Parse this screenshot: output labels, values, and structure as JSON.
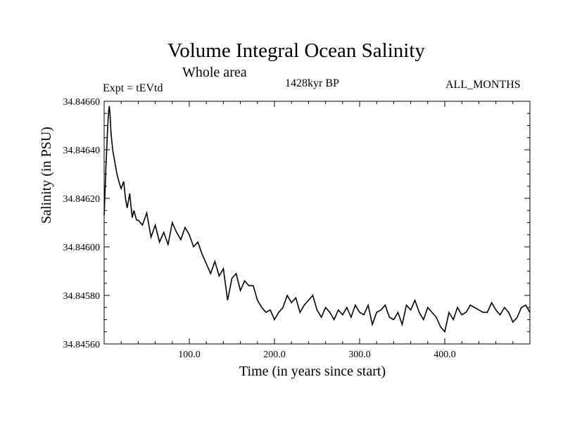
{
  "chart_data": {
    "type": "line",
    "title": "Volume Integral Ocean Salinity",
    "subtitle": "Whole area",
    "annotations": {
      "experiment": "Expt = tEVtd",
      "period": "1428kyr BP",
      "months": "ALL_MONTHS"
    },
    "xlabel": "Time (in years since start)",
    "ylabel": "Salinity (in PSU)",
    "xlim": [
      0,
      500
    ],
    "ylim": [
      34.8456,
      34.8466
    ],
    "xticks": [
      100,
      200,
      300,
      400
    ],
    "xtick_labels": [
      "100.0",
      "200.0",
      "300.0",
      "400.0"
    ],
    "yticks": [
      34.8456,
      34.8458,
      34.846,
      34.8462,
      34.8464,
      34.8466
    ],
    "ytick_labels": [
      "34.84560",
      "34.84580",
      "34.84600",
      "34.84620",
      "34.84640",
      "34.84660"
    ],
    "grid": false,
    "series": [
      {
        "name": "Salinity",
        "x": [
          0,
          2,
          4,
          5,
          6,
          7,
          8,
          10,
          12,
          15,
          18,
          20,
          23,
          25,
          27,
          30,
          33,
          35,
          38,
          40,
          45,
          50,
          55,
          60,
          65,
          70,
          75,
          80,
          85,
          90,
          95,
          100,
          105,
          110,
          115,
          120,
          125,
          130,
          135,
          140,
          145,
          150,
          155,
          160,
          165,
          170,
          175,
          180,
          185,
          190,
          195,
          200,
          205,
          210,
          215,
          220,
          225,
          230,
          235,
          240,
          245,
          250,
          255,
          260,
          265,
          270,
          275,
          280,
          285,
          290,
          295,
          300,
          305,
          310,
          315,
          320,
          325,
          330,
          335,
          340,
          345,
          350,
          355,
          360,
          365,
          370,
          375,
          380,
          385,
          390,
          395,
          400,
          405,
          410,
          415,
          420,
          425,
          430,
          435,
          440,
          445,
          450,
          455,
          460,
          465,
          470,
          475,
          480,
          485,
          490,
          495,
          500
        ],
        "y": [
          34.84613,
          34.84632,
          34.84648,
          34.84655,
          34.84658,
          34.84654,
          34.84647,
          34.8464,
          34.84636,
          34.8463,
          34.84626,
          34.84624,
          34.84627,
          34.8462,
          34.84616,
          34.84622,
          34.84612,
          34.84615,
          34.84611,
          34.84611,
          34.84609,
          34.84614,
          34.84604,
          34.84609,
          34.84602,
          34.84606,
          34.84601,
          34.8461,
          34.84606,
          34.84603,
          34.84608,
          34.84605,
          34.846,
          34.84602,
          34.84597,
          34.84593,
          34.84589,
          34.84594,
          34.84588,
          34.84591,
          34.84578,
          34.84587,
          34.84589,
          34.84582,
          34.84586,
          34.84584,
          34.84584,
          34.84578,
          34.84575,
          34.84573,
          34.84574,
          34.8457,
          34.84573,
          34.84575,
          34.8458,
          34.84577,
          34.84579,
          34.84573,
          34.84576,
          34.84578,
          34.8458,
          34.84574,
          34.84571,
          34.84575,
          34.84573,
          34.8457,
          34.84574,
          34.84572,
          34.84575,
          34.84571,
          34.84576,
          34.84573,
          34.84572,
          34.84576,
          34.84568,
          34.84573,
          34.84574,
          34.84576,
          34.84571,
          34.8457,
          34.84573,
          34.84568,
          34.84576,
          34.84574,
          34.84578,
          34.84573,
          34.8457,
          34.84575,
          34.84573,
          34.84571,
          34.84567,
          34.84565,
          34.84573,
          34.8457,
          34.84575,
          34.84572,
          34.84573,
          34.84576,
          34.84575,
          34.84574,
          34.84573,
          34.84573,
          34.84577,
          34.84574,
          34.84572,
          34.84575,
          34.84573,
          34.84569,
          34.84571,
          34.84575,
          34.84576,
          34.84573
        ]
      }
    ]
  }
}
